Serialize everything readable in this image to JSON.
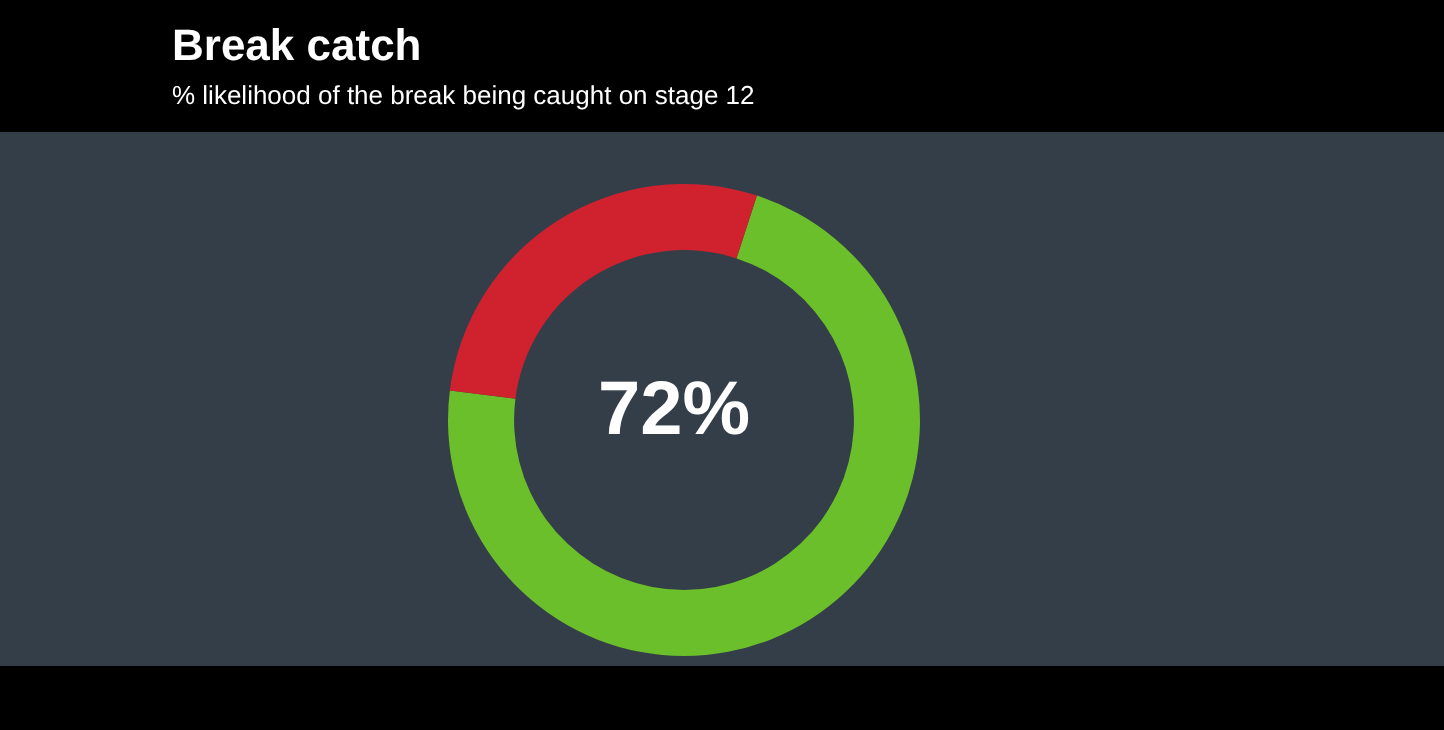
{
  "chart_data": {
    "type": "donut",
    "title": "Break catch",
    "subtitle": "% likelihood of the break being caught on stage 12",
    "categories": [
      null,
      null
    ],
    "values": [
      72,
      28
    ],
    "colors": [
      "#6bbf2b",
      "#d0222e"
    ],
    "annotations": [
      "72%"
    ]
  }
}
